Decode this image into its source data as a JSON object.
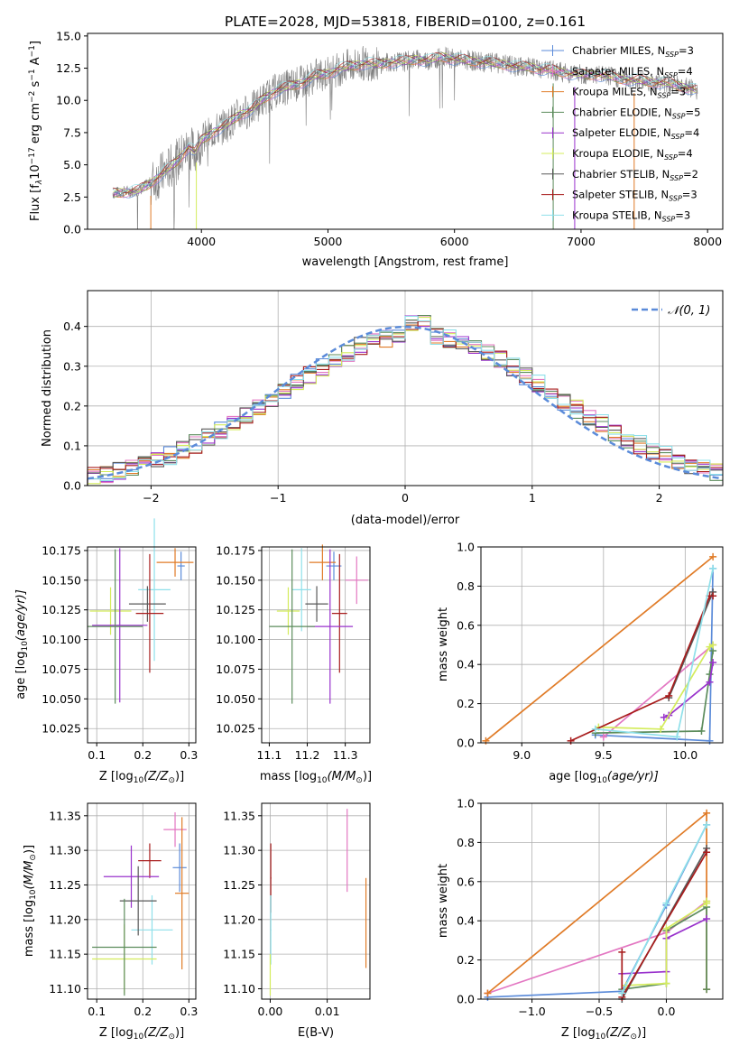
{
  "title": "PLATE=2028, MJD=53818, FIBERID=0100, z=0.161",
  "colors": {
    "obs": "#808080",
    "fit": "#4fc4cf",
    "gauss": "#5b8bd9"
  },
  "models": [
    {
      "label": "Chabrier MILES, N",
      "sub": "SSP",
      "n": "=3",
      "color": "#5b8bd9"
    },
    {
      "label": "Salpeter MILES, N",
      "sub": "SSP",
      "n": "=4",
      "color": "#e377c2"
    },
    {
      "label": "Kroupa MILES, N",
      "sub": "SSP",
      "n": "=3",
      "color": "#e07b27"
    },
    {
      "label": "Chabrier ELODIE, N",
      "sub": "SSP",
      "n": "=5",
      "color": "#5c8c5c"
    },
    {
      "label": "Salpeter ELODIE, N",
      "sub": "SSP",
      "n": "=4",
      "color": "#9932cc"
    },
    {
      "label": "Kroupa ELODIE, N",
      "sub": "SSP",
      "n": "=4",
      "color": "#d4ec5c"
    },
    {
      "label": "Chabrier STELIB, N",
      "sub": "SSP",
      "n": "=2",
      "color": "#595959"
    },
    {
      "label": "Salpeter STELIB, N",
      "sub": "SSP",
      "n": "=3",
      "color": "#a81c1c"
    },
    {
      "label": "Kroupa STELIB, N",
      "sub": "SSP",
      "n": "=3",
      "color": "#8fe0ea"
    }
  ],
  "spectrum": {
    "xlabel": "wavelength [Angstrom, rest frame]",
    "ylabel_pre": "Flux [f",
    "ylabel_sub": "λ",
    "ylabel_mid": "10",
    "ylabel_sup1": "−17",
    "ylabel_post": " erg cm",
    "ylabel_sup2": "−2",
    "ylabel_mid2": " s",
    "ylabel_sup3": "−1",
    "ylabel_end": " A",
    "ylabel_sup4": "−1",
    "ylabel_close": "]",
    "xlim": [
      3100,
      8120
    ],
    "ylim": [
      0,
      15.2
    ],
    "xticks": [
      4000,
      5000,
      6000,
      7000,
      8000
    ],
    "yticks": [
      0.0,
      2.5,
      5.0,
      7.5,
      10.0,
      12.5,
      15.0
    ],
    "xticklabels": [
      "4000",
      "5000",
      "6000",
      "7000",
      "8000"
    ],
    "yticklabels": [
      "0.0",
      "2.5",
      "5.0",
      "7.5",
      "10.0",
      "12.5",
      "15.0"
    ],
    "continuum": [
      [
        3300,
        2.8
      ],
      [
        3500,
        3.0
      ],
      [
        3600,
        3.6
      ],
      [
        3700,
        4.4
      ],
      [
        3800,
        5.2
      ],
      [
        3900,
        6.4
      ],
      [
        3950,
        6.0
      ],
      [
        4000,
        6.9
      ],
      [
        4100,
        7.6
      ],
      [
        4200,
        8.1
      ],
      [
        4300,
        8.9
      ],
      [
        4400,
        9.3
      ],
      [
        4500,
        10.2
      ],
      [
        4600,
        10.8
      ],
      [
        4700,
        11.1
      ],
      [
        4800,
        11.4
      ],
      [
        4900,
        11.9
      ],
      [
        5000,
        12.1
      ],
      [
        5100,
        12.5
      ],
      [
        5200,
        12.7
      ],
      [
        5300,
        12.9
      ],
      [
        5400,
        12.8
      ],
      [
        5500,
        13.0
      ],
      [
        5600,
        13.0
      ],
      [
        5700,
        13.2
      ],
      [
        5800,
        13.1
      ],
      [
        5900,
        13.4
      ],
      [
        6000,
        13.2
      ],
      [
        6100,
        13.1
      ],
      [
        6200,
        13.0
      ],
      [
        6300,
        12.9
      ],
      [
        6400,
        12.8
      ],
      [
        6500,
        12.6
      ],
      [
        6600,
        12.6
      ],
      [
        6700,
        12.4
      ],
      [
        6800,
        12.3
      ],
      [
        6900,
        12.1
      ],
      [
        7000,
        12.0
      ],
      [
        7100,
        12.0
      ],
      [
        7200,
        11.9
      ],
      [
        7300,
        11.7
      ],
      [
        7400,
        11.6
      ],
      [
        7500,
        11.5
      ],
      [
        7600,
        11.4
      ],
      [
        7700,
        11.3
      ],
      [
        7800,
        11.1
      ],
      [
        7900,
        10.8
      ]
    ]
  },
  "residuals": {
    "xlabel": "(data-model)/error",
    "ylabel": "Normed distribution",
    "legend": "𝒩(0, 1)",
    "xlim": [
      -2.5,
      2.5
    ],
    "ylim": [
      0,
      0.49
    ],
    "xticks": [
      -2,
      -1,
      0,
      1,
      2
    ],
    "xticklabels": [
      "−2",
      "−1",
      "0",
      "1",
      "2"
    ],
    "yticks": [
      0.0,
      0.1,
      0.2,
      0.3,
      0.4
    ],
    "yticklabels": [
      "0.0",
      "0.1",
      "0.2",
      "0.3",
      "0.4"
    ]
  },
  "age_vs_z": {
    "xlabel_pre": "Z [log",
    "xlabel_sub": "10",
    "xlabel_post": "(Z/Z",
    "xlabel_sub2": "⊙",
    "xlabel_end": ")]",
    "ylabel_pre": "age  [log",
    "ylabel_sub": "10",
    "ylabel_post": "(age/yr)]",
    "xlim": [
      0.08,
      0.315
    ],
    "ylim": [
      10.013,
      10.178
    ],
    "xticks": [
      0.1,
      0.2,
      0.3
    ],
    "xticklabels": [
      "0.1",
      "0.2",
      "0.3"
    ],
    "yticks": [
      10.025,
      10.05,
      10.075,
      10.1,
      10.125,
      10.15,
      10.175
    ],
    "yticklabels": [
      "10.025",
      "10.050",
      "10.075",
      "10.100",
      "10.125",
      "10.150",
      "10.175"
    ],
    "points": [
      {
        "x": 0.283,
        "xe": 0.008,
        "y": 10.162,
        "ye": 0.012,
        "c": 0
      },
      {
        "x": 0.27,
        "xe": 0.04,
        "y": 10.165,
        "ye": 0.012,
        "c": 2
      },
      {
        "x": 0.225,
        "xe": 0.035,
        "y": 10.142,
        "ye": 0.06,
        "c": 8
      },
      {
        "x": 0.13,
        "xe": 0.045,
        "y": 10.124,
        "ye": 0.02,
        "c": 5
      },
      {
        "x": 0.21,
        "xe": 0.04,
        "y": 10.13,
        "ye": 0.015,
        "c": 6
      },
      {
        "x": 0.215,
        "xe": 0.03,
        "y": 10.122,
        "ye": 0.05,
        "c": 7
      },
      {
        "x": 0.15,
        "xe": 0.06,
        "y": 10.112,
        "ye": 0.065,
        "c": 4
      },
      {
        "x": 0.14,
        "xe": 0.06,
        "y": 10.111,
        "ye": 0.065,
        "c": 3
      }
    ]
  },
  "age_vs_mass": {
    "xlabel_pre": "mass [log",
    "xlabel_sub": "10",
    "xlabel_post": "(M/M",
    "xlabel_sub2": "⊙",
    "xlabel_end": ")]",
    "xlim": [
      11.08,
      11.365
    ],
    "ylim": [
      10.013,
      10.178
    ],
    "xticks": [
      11.1,
      11.2,
      11.3
    ],
    "xticklabels": [
      "11.1",
      "11.2",
      "11.3"
    ],
    "yticks": [
      10.025,
      10.05,
      10.075,
      10.1,
      10.125,
      10.15,
      10.175
    ],
    "yticklabels": [
      "10.025",
      "10.050",
      "10.075",
      "10.100",
      "10.125",
      "10.150",
      "10.175"
    ],
    "points": [
      {
        "x": 11.27,
        "xe": 0.02,
        "y": 10.162,
        "ye": 0.012,
        "c": 0
      },
      {
        "x": 11.33,
        "xe": 0.03,
        "y": 10.15,
        "ye": 0.02,
        "c": 1
      },
      {
        "x": 11.24,
        "xe": 0.035,
        "y": 10.165,
        "ye": 0.015,
        "c": 2
      },
      {
        "x": 11.185,
        "xe": 0.025,
        "y": 10.142,
        "ye": 0.035,
        "c": 8
      },
      {
        "x": 11.15,
        "xe": 0.03,
        "y": 10.124,
        "ye": 0.02,
        "c": 5
      },
      {
        "x": 11.225,
        "xe": 0.03,
        "y": 10.13,
        "ye": 0.015,
        "c": 6
      },
      {
        "x": 11.285,
        "xe": 0.02,
        "y": 10.122,
        "ye": 0.05,
        "c": 7
      },
      {
        "x": 11.26,
        "xe": 0.06,
        "y": 10.111,
        "ye": 0.065,
        "c": 4
      },
      {
        "x": 11.16,
        "xe": 0.06,
        "y": 10.111,
        "ye": 0.065,
        "c": 3
      }
    ]
  },
  "mass_vs_z": {
    "xlabel_pre": "Z [log",
    "xlabel_sub": "10",
    "xlabel_post": "(Z/Z",
    "xlabel_sub2": "⊙",
    "xlabel_end": ")]",
    "ylabel_pre": "mass [log",
    "ylabel_sub": "10",
    "ylabel_post": "(M/M",
    "ylabel_sub2": "⊙",
    "ylabel_end": ")]",
    "xlim": [
      0.08,
      0.315
    ],
    "ylim": [
      11.085,
      11.368
    ],
    "xticks": [
      0.1,
      0.2,
      0.3
    ],
    "xticklabels": [
      "0.1",
      "0.2",
      "0.3"
    ],
    "yticks": [
      11.1,
      11.15,
      11.2,
      11.25,
      11.3,
      11.35
    ],
    "yticklabels": [
      "11.10",
      "11.15",
      "11.20",
      "11.25",
      "11.30",
      "11.35"
    ],
    "points": [
      {
        "x": 0.28,
        "xe": 0.015,
        "y": 11.275,
        "ye": 0.035,
        "c": 0
      },
      {
        "x": 0.27,
        "xe": 0.025,
        "y": 11.33,
        "ye": 0.025,
        "c": 1
      },
      {
        "x": 0.285,
        "xe": 0.015,
        "y": 11.238,
        "ye": 0.11,
        "c": 2
      },
      {
        "x": 0.22,
        "xe": 0.045,
        "y": 11.185,
        "ye": 0.05,
        "c": 8
      },
      {
        "x": 0.215,
        "xe": 0.025,
        "y": 11.285,
        "ye": 0.025,
        "c": 7
      },
      {
        "x": 0.175,
        "xe": 0.06,
        "y": 11.262,
        "ye": 0.045,
        "c": 4
      },
      {
        "x": 0.19,
        "xe": 0.04,
        "y": 11.227,
        "ye": 0.05,
        "c": 6
      },
      {
        "x": 0.16,
        "xe": 0.07,
        "y": 11.143,
        "ye": 0.05,
        "c": 5
      },
      {
        "x": 0.16,
        "xe": 0.07,
        "y": 11.16,
        "ye": 0.07,
        "c": 3
      }
    ]
  },
  "mass_vs_ebv": {
    "xlabel": "E(B-V)",
    "xlim": [
      -0.0015,
      0.0175
    ],
    "ylim": [
      11.085,
      11.368
    ],
    "xticks": [
      0.0,
      0.01
    ],
    "xticklabels": [
      "0.00",
      "0.01"
    ],
    "yticks": [
      11.1,
      11.15,
      11.2,
      11.25,
      11.3,
      11.35
    ],
    "yticklabels": [
      "11.10",
      "11.15",
      "11.20",
      "11.25",
      "11.30",
      "11.35"
    ],
    "points": [
      {
        "x": 0.0001,
        "xe": 0.0001,
        "y": 11.26,
        "ye": 0.05,
        "c": 7
      },
      {
        "x": 0.0001,
        "xe": 0.0001,
        "y": 11.185,
        "ye": 0.05,
        "c": 8
      },
      {
        "x": 0.0,
        "xe": 0.0,
        "y": 11.12,
        "ye": 0.03,
        "c": 5
      },
      {
        "x": 0.0135,
        "xe": 0.0,
        "y": 11.3,
        "ye": 0.06,
        "c": 1
      },
      {
        "x": 0.0168,
        "xe": 0.0,
        "y": 11.195,
        "ye": 0.065,
        "c": 2
      }
    ]
  },
  "weight_vs_age": {
    "xlabel_pre": "age  [log",
    "xlabel_sub": "10",
    "xlabel_post": "(age/yr)]",
    "ylabel": "mass weight",
    "xlim": [
      8.75,
      10.23
    ],
    "ylim": [
      0,
      1.0
    ],
    "xticks": [
      9.0,
      9.5,
      10.0
    ],
    "xticklabels": [
      "9.0",
      "9.5",
      "10.0"
    ],
    "yticks": [
      0.0,
      0.2,
      0.4,
      0.6,
      0.8,
      1.0
    ],
    "yticklabels": [
      "0.0",
      "0.2",
      "0.4",
      "0.6",
      "0.8",
      "1.0"
    ],
    "series": [
      {
        "c": 0,
        "x": [
          9.45,
          10.15,
          10.17
        ],
        "y": [
          0.04,
          0.01,
          0.89
        ]
      },
      {
        "c": 1,
        "x": [
          9.5,
          10.17
        ],
        "y": [
          0.03,
          0.5
        ]
      },
      {
        "c": 2,
        "x": [
          8.78,
          10.17
        ],
        "y": [
          0.01,
          0.95
        ]
      },
      {
        "c": 3,
        "x": [
          9.45,
          10.1,
          10.15,
          10.17
        ],
        "y": [
          0.05,
          0.06,
          0.35,
          0.47
        ]
      },
      {
        "c": 4,
        "x": [
          9.87,
          9.9,
          10.15,
          10.17
        ],
        "y": [
          0.13,
          0.14,
          0.31,
          0.41
        ]
      },
      {
        "c": 5,
        "x": [
          9.47,
          9.85,
          10.15,
          10.17
        ],
        "y": [
          0.08,
          0.07,
          0.49,
          0.5
        ]
      },
      {
        "c": 6,
        "x": [
          9.9,
          10.17
        ],
        "y": [
          0.23,
          0.77
        ]
      },
      {
        "c": 7,
        "x": [
          9.3,
          9.9,
          10.15,
          10.17
        ],
        "y": [
          0.01,
          0.24,
          0.75,
          0.75
        ]
      },
      {
        "c": 8,
        "x": [
          9.45,
          9.95,
          10.17
        ],
        "y": [
          0.07,
          0.03,
          0.89
        ]
      }
    ]
  },
  "weight_vs_z": {
    "xlabel_pre": "Z [log",
    "xlabel_sub": "10",
    "xlabel_post": "(Z/Z",
    "xlabel_sub2": "⊙",
    "xlabel_end": ")]",
    "ylabel": "mass weight",
    "xlim": [
      -1.38,
      0.42
    ],
    "ylim": [
      0,
      1.0
    ],
    "xticks": [
      -1.0,
      -0.5,
      0.0
    ],
    "xticklabels": [
      "−1.0",
      "−0.5",
      "0.0"
    ],
    "yticks": [
      0.0,
      0.2,
      0.4,
      0.6,
      0.8,
      1.0
    ],
    "yticklabels": [
      "0.0",
      "0.2",
      "0.4",
      "0.6",
      "0.8",
      "1.0"
    ],
    "series": [
      {
        "c": 0,
        "x": [
          -1.33,
          -0.33,
          0.0,
          0.3
        ],
        "y": [
          0.01,
          0.04,
          0.48,
          0.89
        ]
      },
      {
        "c": 1,
        "x": [
          -1.33,
          0.0,
          0.3
        ],
        "y": [
          0.03,
          0.34,
          0.5
        ]
      },
      {
        "c": 2,
        "x": [
          -1.33,
          0.3,
          0.3
        ],
        "y": [
          0.03,
          0.95,
          0.05
        ]
      },
      {
        "c": 3,
        "x": [
          -0.33,
          0.0,
          0.0,
          0.3,
          0.3
        ],
        "y": [
          0.05,
          0.08,
          0.35,
          0.47,
          0.05
        ]
      },
      {
        "c": 4,
        "x": [
          -0.33,
          0.0,
          0.0,
          0.3
        ],
        "y": [
          0.13,
          0.14,
          0.31,
          0.41
        ]
      },
      {
        "c": 5,
        "x": [
          -0.3,
          0.0,
          0.0,
          0.3,
          0.3
        ],
        "y": [
          0.07,
          0.08,
          0.36,
          0.49,
          0.5
        ]
      },
      {
        "c": 6,
        "x": [
          -0.33,
          0.3
        ],
        "y": [
          0.0,
          0.77
        ]
      },
      {
        "c": 7,
        "x": [
          -0.33,
          -0.33,
          0.3
        ],
        "y": [
          0.24,
          0.01,
          0.75
        ]
      },
      {
        "c": 8,
        "x": [
          -0.33,
          0.0,
          0.3
        ],
        "y": [
          0.03,
          0.49,
          0.89
        ]
      }
    ]
  }
}
